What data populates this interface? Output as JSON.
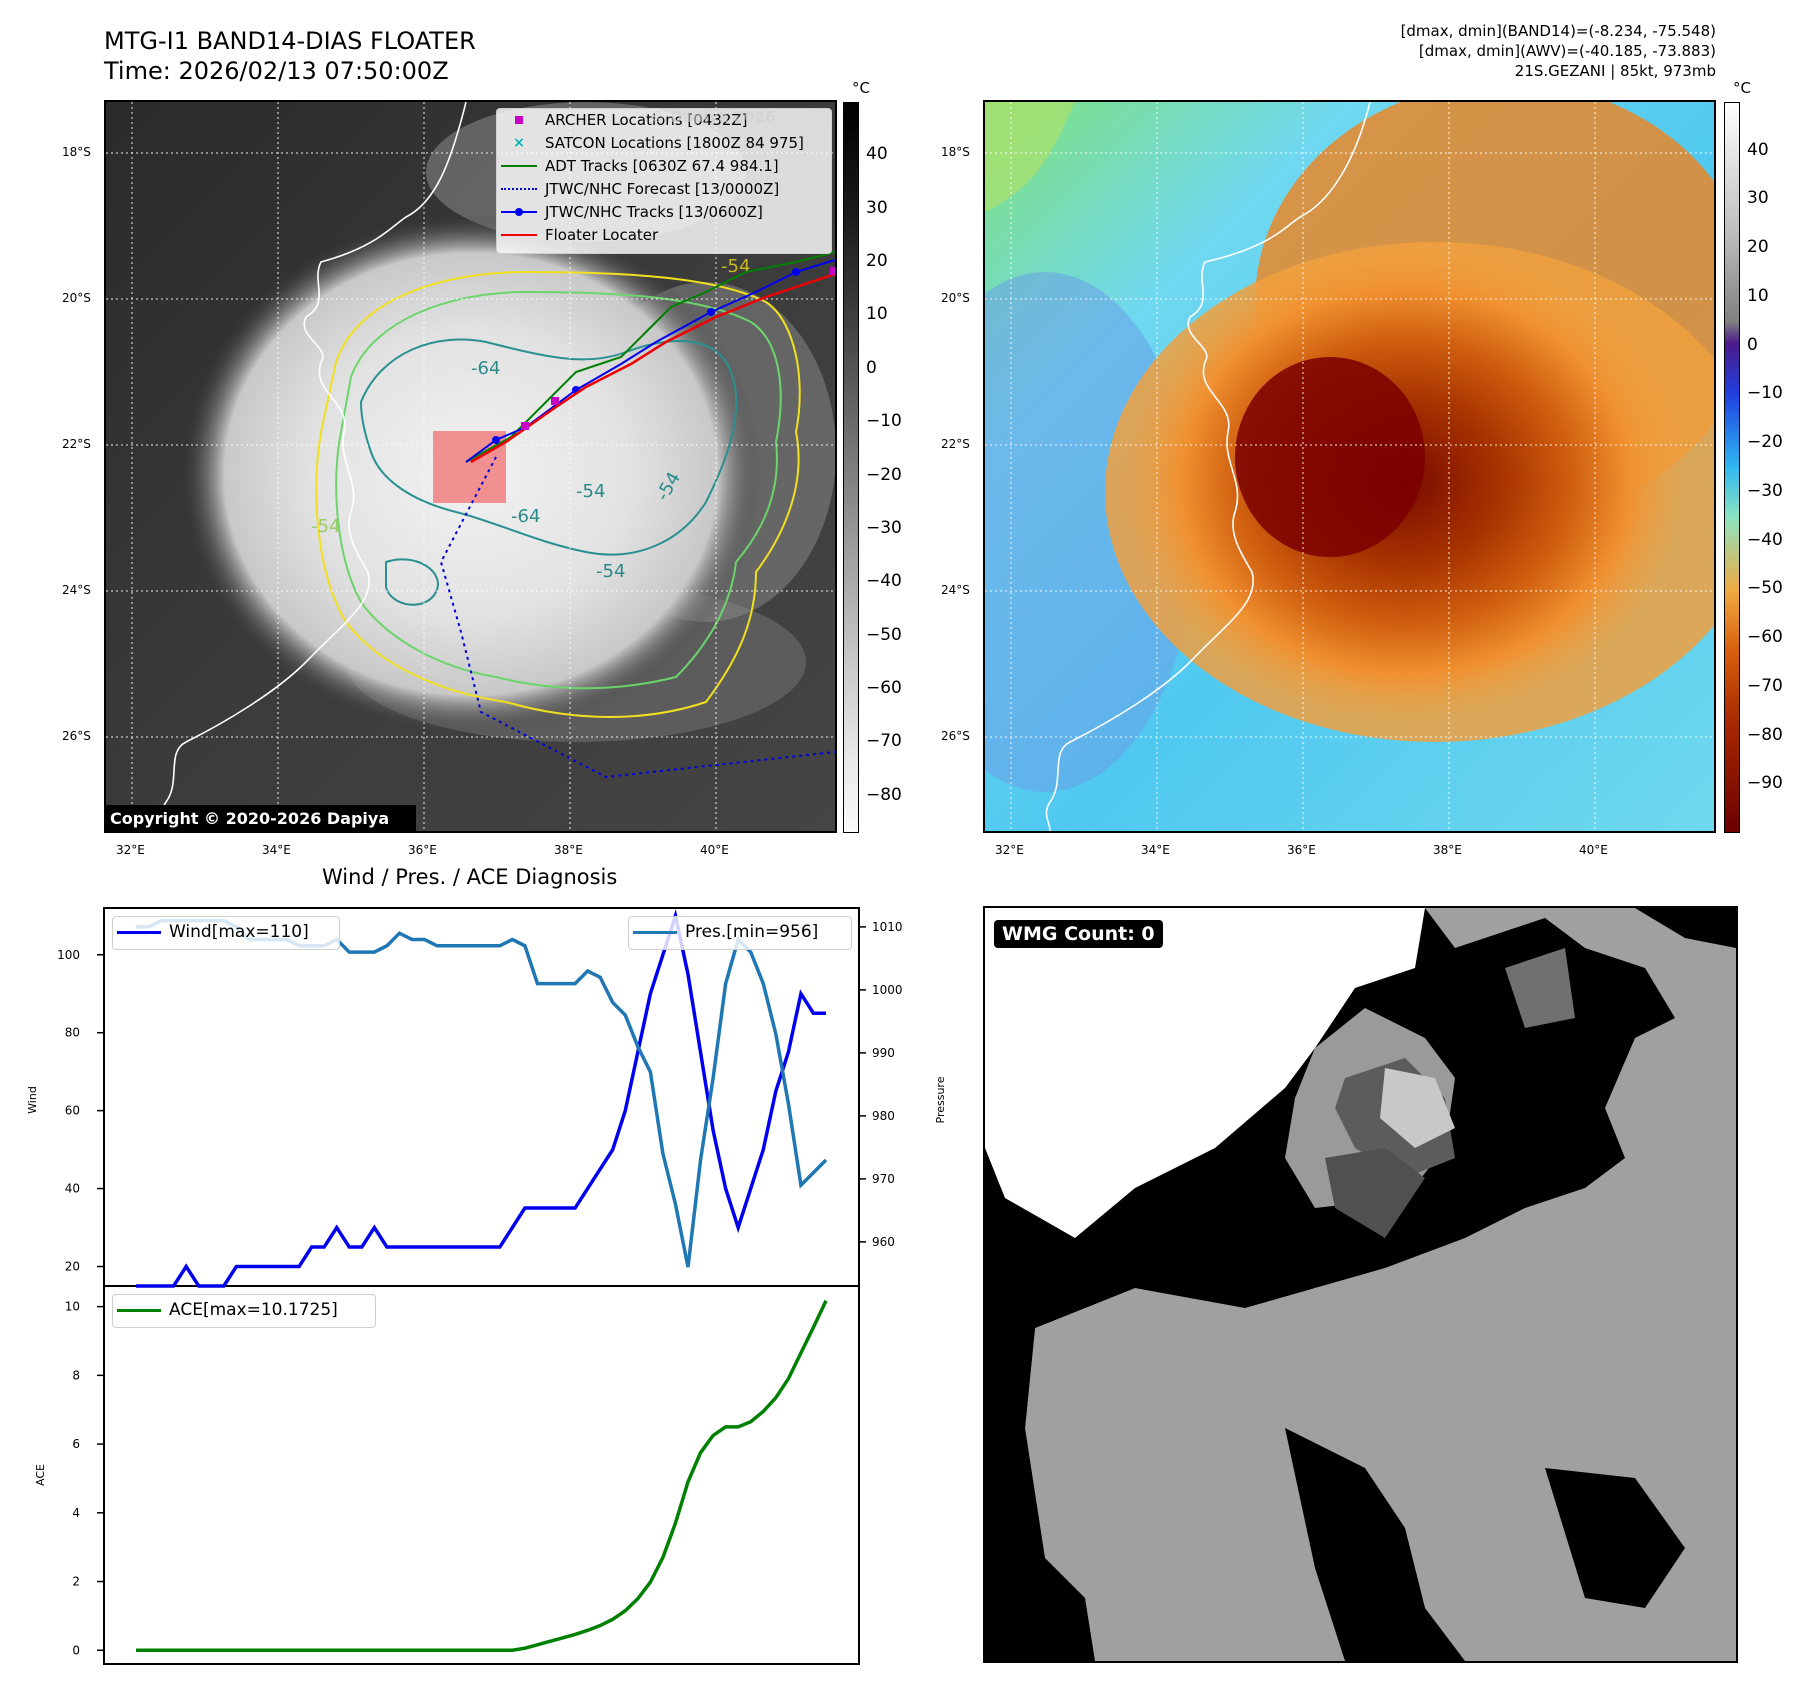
{
  "header": {
    "title_line1": "MTG-I1 BAND14-DIAS FLOATER",
    "title_line2": "Time: 2026/02/13 07:50:00Z",
    "meta_line1": "[dmax, dmin](BAND14)=(-8.234, -75.548)",
    "meta_line2": "[dmax, dmin](AWV)=(-40.185, -73.883)",
    "meta_line3": "21S.GEZANI | 85kt, 973mb"
  },
  "map_axes": {
    "lat_labels": [
      "18°S",
      "20°S",
      "22°S",
      "24°S",
      "26°S"
    ],
    "lon_labels": [
      "32°E",
      "34°E",
      "36°E",
      "38°E",
      "40°E"
    ]
  },
  "ir_panel": {
    "copyright": "Copyright © 2020-2026 Dapiya",
    "watermark": "© Dapiya 2026",
    "contour_labels": [
      "-64",
      "-54",
      "-54",
      "-64",
      "-54",
      "-54",
      "-54"
    ],
    "legend": [
      {
        "label": "ARCHER Locations [0432Z]",
        "color": "#c800c8",
        "marker": "square"
      },
      {
        "label": "SATCON Locations [1800Z 84 975]",
        "color": "#00b4b4",
        "marker": "x"
      },
      {
        "label": "ADT Tracks [0630Z 67.4 984.1]",
        "color": "#007f00",
        "marker": "line"
      },
      {
        "label": "JTWC/NHC Forecast [13/0000Z]",
        "color": "#0000dd",
        "marker": "dotted"
      },
      {
        "label": "JTWC/NHC Tracks [13/0600Z]",
        "color": "#0000ee",
        "marker": "line-dot"
      },
      {
        "label": "Floater Locater",
        "color": "#ee0000",
        "marker": "line"
      }
    ],
    "colorbar_unit": "°C",
    "colorbar_ticks": [
      "40",
      "30",
      "20",
      "10",
      "0",
      "−10",
      "−20",
      "−30",
      "−40",
      "−50",
      "−60",
      "−70",
      "−80"
    ]
  },
  "wv_panel": {
    "colorbar_unit": "°C",
    "colorbar_ticks": [
      "40",
      "30",
      "20",
      "10",
      "0",
      "−10",
      "−20",
      "−30",
      "−40",
      "−50",
      "−60",
      "−70",
      "−80",
      "−90"
    ]
  },
  "wmg_panel": {
    "badge": "WMG Count: 0"
  },
  "diagnosis": {
    "title": "Wind / Pres. / ACE Diagnosis",
    "wind_legend": "Wind[max=110]",
    "pres_legend": "Pres.[min=956]",
    "ace_legend": "ACE[max=10.1725]",
    "wind_axis_label": "Wind",
    "pres_axis_label": "Pressure",
    "ace_axis_label": "ACE",
    "wind_ticks": [
      "20",
      "40",
      "60",
      "80",
      "100"
    ],
    "pres_ticks": [
      "960",
      "970",
      "980",
      "990",
      "1000",
      "1010"
    ],
    "ace_ticks": [
      "0",
      "2",
      "4",
      "6",
      "8",
      "10"
    ],
    "colors": {
      "wind": "#0000ee",
      "pres": "#1f77b4",
      "ace": "#008000"
    }
  },
  "chart_data": [
    {
      "type": "line",
      "title": "Wind / Pres. / ACE Diagnosis",
      "xlabel": "",
      "ylabel": "Wind",
      "ylim": [
        15,
        112
      ],
      "series": [
        {
          "name": "Wind[max=110]",
          "axis": "left",
          "values": [
            15,
            15,
            15,
            15,
            20,
            15,
            15,
            15,
            20,
            20,
            20,
            20,
            20,
            20,
            25,
            25,
            30,
            25,
            25,
            30,
            25,
            25,
            25,
            25,
            25,
            25,
            25,
            25,
            25,
            25,
            30,
            35,
            35,
            35,
            35,
            35,
            40,
            45,
            50,
            60,
            75,
            90,
            100,
            110,
            95,
            75,
            55,
            40,
            30,
            40,
            50,
            65,
            75,
            90,
            85,
            85
          ]
        },
        {
          "name": "Pres.[min=956]",
          "axis": "right",
          "ylim": [
            953,
            1013
          ],
          "values": [
            1010,
            1010,
            1011,
            1011,
            1011,
            1011,
            1011,
            1011,
            1010,
            1008,
            1008,
            1008,
            1008,
            1007,
            1007,
            1007,
            1008,
            1006,
            1006,
            1006,
            1007,
            1009,
            1008,
            1008,
            1007,
            1007,
            1007,
            1007,
            1007,
            1007,
            1008,
            1007,
            1001,
            1001,
            1001,
            1001,
            1003,
            1002,
            998,
            996,
            991,
            987,
            974,
            966,
            956,
            973,
            986,
            1001,
            1008,
            1006,
            1001,
            993,
            982,
            969,
            971,
            973
          ]
        }
      ]
    },
    {
      "type": "line",
      "title": "",
      "xlabel": "",
      "ylabel": "ACE",
      "ylim": [
        -0.4,
        10.6
      ],
      "series": [
        {
          "name": "ACE[max=10.1725]",
          "values": [
            0,
            0,
            0,
            0,
            0,
            0,
            0,
            0,
            0,
            0,
            0,
            0,
            0,
            0,
            0,
            0,
            0,
            0,
            0,
            0,
            0,
            0,
            0,
            0,
            0,
            0,
            0,
            0,
            0,
            0,
            0,
            0.06,
            0.16,
            0.26,
            0.36,
            0.46,
            0.58,
            0.72,
            0.9,
            1.15,
            1.5,
            1.98,
            2.7,
            3.7,
            4.9,
            5.75,
            6.25,
            6.5,
            6.5,
            6.65,
            6.95,
            7.35,
            7.9,
            8.65,
            9.4,
            10.1725
          ]
        }
      ]
    }
  ]
}
